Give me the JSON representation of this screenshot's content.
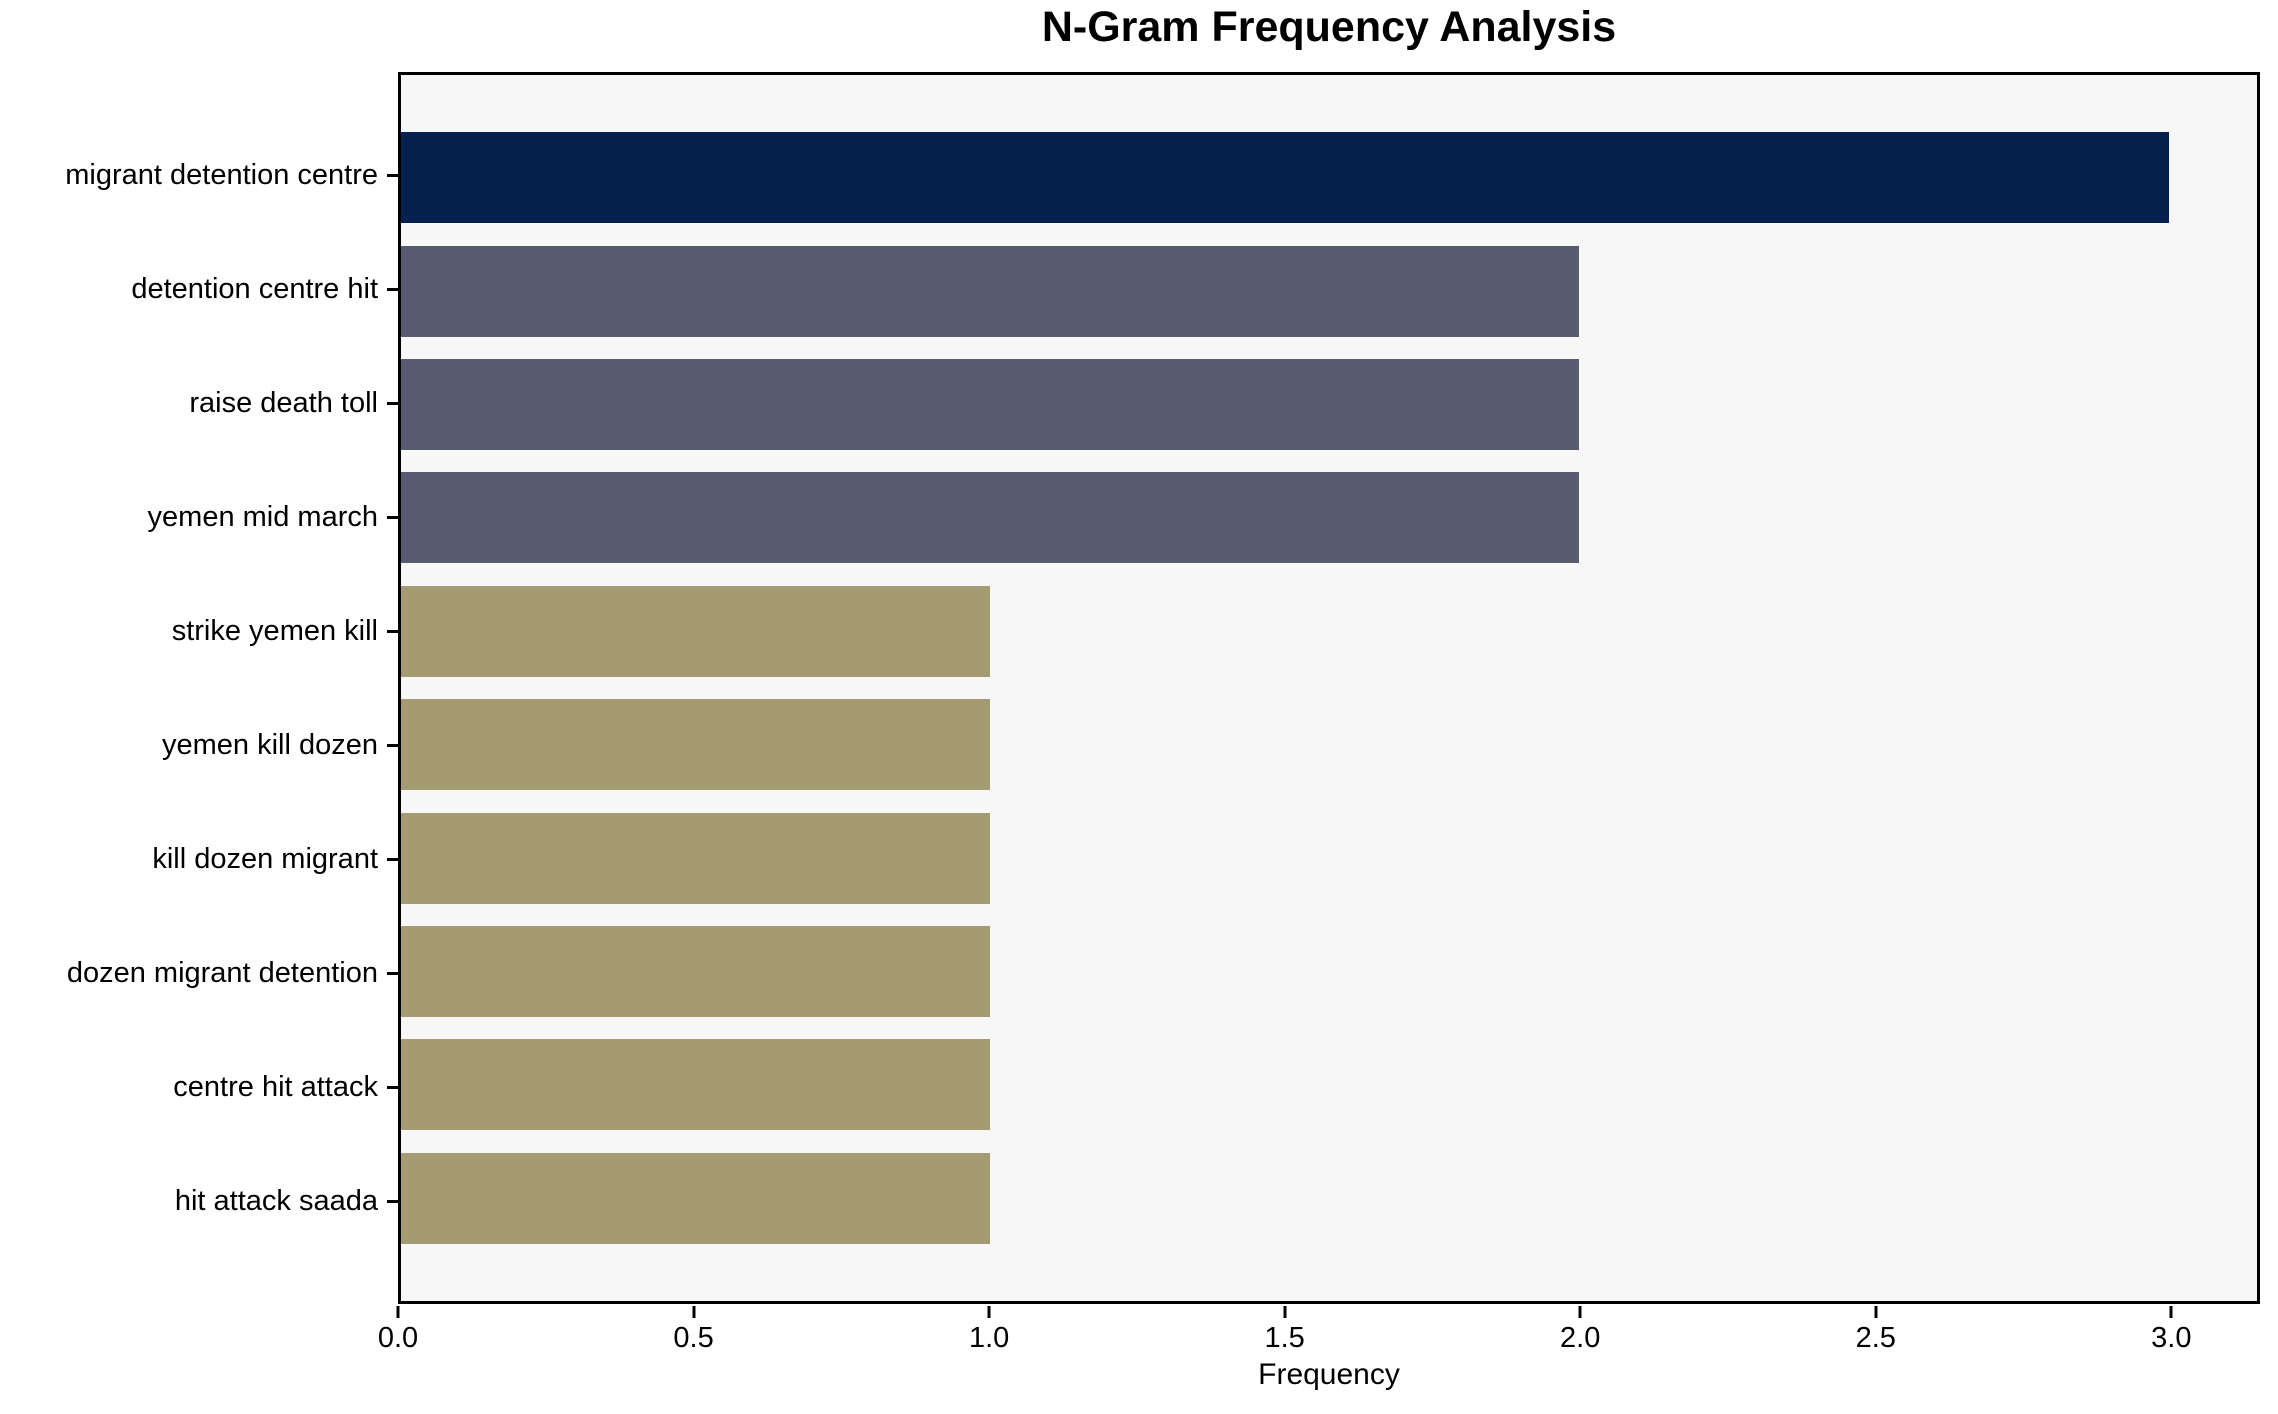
{
  "figure": {
    "background": "#ffffff",
    "plot_background": "#f7f7f8",
    "axis_color": "#000000",
    "text_color": "#000000"
  },
  "chart_data": {
    "type": "bar",
    "orientation": "horizontal",
    "title": "N-Gram Frequency Analysis",
    "xlabel": "Frequency",
    "ylabel": "",
    "categories": [
      "migrant detention centre",
      "detention centre hit",
      "raise death toll",
      "yemen mid march",
      "strike yemen kill",
      "yemen kill dozen",
      "kill dozen migrant",
      "dozen migrant detention",
      "centre hit attack",
      "hit attack saada"
    ],
    "values": [
      3,
      2,
      2,
      2,
      1,
      1,
      1,
      1,
      1,
      1
    ],
    "bar_colors": [
      "#03214c",
      "#575c6e",
      "#575c6e",
      "#575c6e",
      "#a49b72",
      "#a49b72",
      "#a49b72",
      "#a49b72",
      "#a49b72",
      "#a49b72"
    ],
    "xlim": [
      0,
      3.15
    ],
    "xticks": [
      0.0,
      0.5,
      1.0,
      1.5,
      2.0,
      2.5,
      3.0
    ],
    "xtick_labels": [
      "0.0",
      "0.5",
      "1.0",
      "1.5",
      "2.0",
      "2.5",
      "3.0"
    ],
    "grid": false,
    "legend": false
  }
}
